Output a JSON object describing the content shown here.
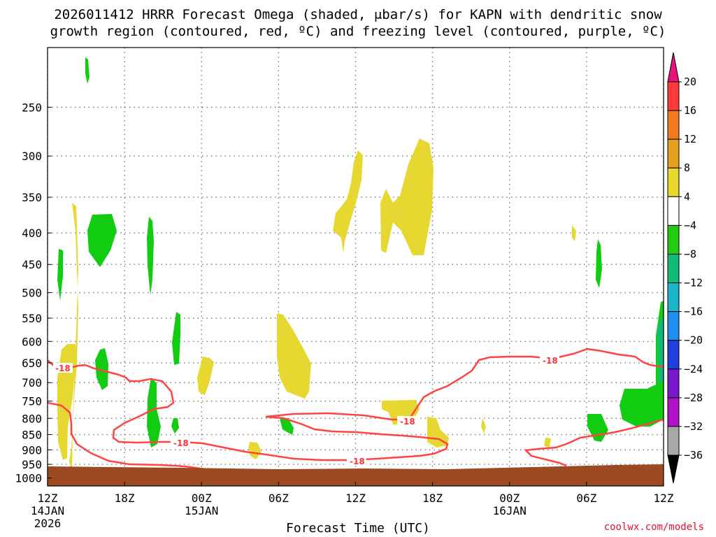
{
  "title": {
    "line1": "2026011412 HRRR Forecast Omega (shaded, μbar/s) for KAPN with dendritic snow",
    "line2": "growth region (contoured, red, ºC) and freezing level (contoured, purple, ºC)"
  },
  "credit": "coolwx.com/models",
  "chart_data": {
    "type": "heatmap",
    "title": "2026011412 HRRR Forecast Omega (shaded, μbar/s) for KAPN with dendritic snow growth region (contoured, red, ºC) and freezing level (contoured, purple, ºC)",
    "xlabel": "Forecast Time (UTC)",
    "ylabel": "",
    "x_ticks": [
      {
        "hour": 0,
        "label": "12Z",
        "sub1": "14JAN",
        "sub2": "2026"
      },
      {
        "hour": 6,
        "label": "18Z",
        "sub1": "",
        "sub2": ""
      },
      {
        "hour": 12,
        "label": "00Z",
        "sub1": "15JAN",
        "sub2": ""
      },
      {
        "hour": 18,
        "label": "06Z",
        "sub1": "",
        "sub2": ""
      },
      {
        "hour": 24,
        "label": "12Z",
        "sub1": "",
        "sub2": ""
      },
      {
        "hour": 30,
        "label": "18Z",
        "sub1": "",
        "sub2": ""
      },
      {
        "hour": 36,
        "label": "00Z",
        "sub1": "16JAN",
        "sub2": ""
      },
      {
        "hour": 42,
        "label": "06Z",
        "sub1": "",
        "sub2": ""
      },
      {
        "hour": 48,
        "label": "12Z",
        "sub1": "",
        "sub2": ""
      }
    ],
    "xlim_hours": [
      0,
      48
    ],
    "y_ticks_hpa": [
      250,
      300,
      350,
      400,
      450,
      500,
      550,
      600,
      650,
      700,
      750,
      800,
      850,
      900,
      950,
      1000
    ],
    "ylim_hpa": [
      200,
      1030
    ],
    "y_scale": "log-pressure",
    "grid": true,
    "colorbar": {
      "labels": [
        20,
        16,
        12,
        8,
        4,
        -4,
        -8,
        -12,
        -16,
        -20,
        -24,
        -28,
        -32,
        -36
      ],
      "bins": [
        {
          "range": "above 20",
          "color": "#e8137a"
        },
        {
          "range": "16 to 20",
          "color": "#ff3a3a"
        },
        {
          "range": "12 to 16",
          "color": "#f07a20"
        },
        {
          "range": "8 to 12",
          "color": "#e6a020"
        },
        {
          "range": "4 to 8",
          "color": "#e8d82a"
        },
        {
          "range": "-4 to 4",
          "color": "#ffffff"
        },
        {
          "range": "-8 to -4",
          "color": "#22cc11"
        },
        {
          "range": "-12 to -8",
          "color": "#11bb77"
        },
        {
          "range": "-16 to -12",
          "color": "#1ab5c8"
        },
        {
          "range": "-20 to -16",
          "color": "#2090f0"
        },
        {
          "range": "-24 to -20",
          "color": "#2040dd"
        },
        {
          "range": "-28 to -24",
          "color": "#7a18d0"
        },
        {
          "range": "-32 to -28",
          "color": "#b012c8"
        },
        {
          "range": "-36 to -32",
          "color": "#a8a8a8"
        },
        {
          "range": "below -36",
          "color": "#000000"
        }
      ]
    },
    "contour_label": "-18",
    "colors": {
      "positive_omega": "#e6d830",
      "negative_omega": "#11cc11",
      "dgz_contour": "#ff4444",
      "terrain": "#9b4a22",
      "grid": "#777777"
    }
  }
}
